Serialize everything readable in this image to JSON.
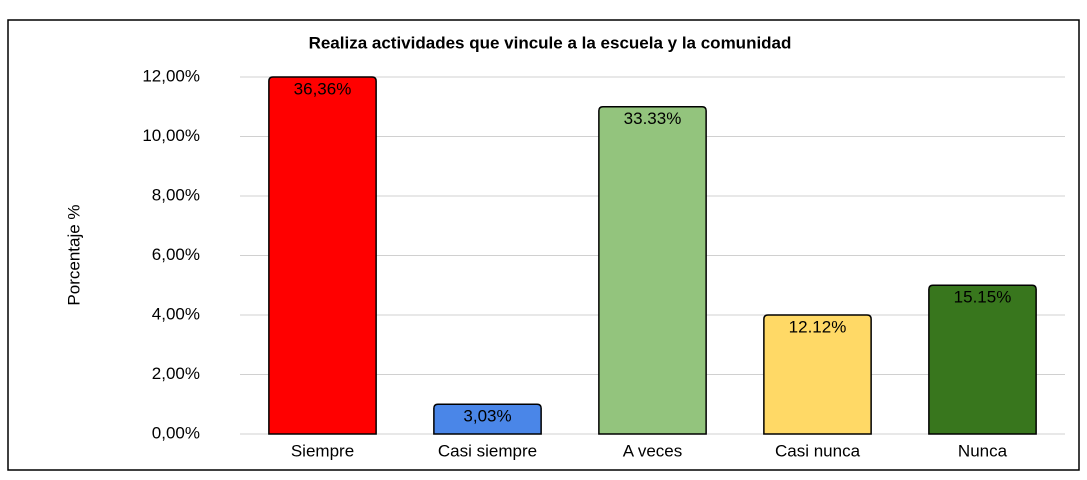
{
  "chart_data": {
    "type": "bar",
    "title": "Realiza actividades que vincule a la escuela y la comunidad",
    "y_label": "Porcentaje %",
    "categories": [
      "Siempre",
      "Casi siempre",
      "A veces",
      "Casi nunca",
      "Nunca"
    ],
    "values": [
      12,
      1,
      11,
      4,
      5
    ],
    "value_labels": [
      "36,36%",
      "3,03%",
      "33.33%",
      "12.12%",
      "15.15%"
    ],
    "colors": [
      "#ff0000",
      "#4a86e8",
      "#93c47d",
      "#ffd966",
      "#38761d"
    ],
    "value_label_colors": [
      "#ffffff",
      "#ffffff",
      "#000000",
      "#000000",
      "#ffffff"
    ],
    "ylim": [
      0,
      12
    ],
    "yticks": [
      {
        "value": 0,
        "label": "0,00%"
      },
      {
        "value": 2,
        "label": "2,00%"
      },
      {
        "value": 4,
        "label": "4,00%"
      },
      {
        "value": 6,
        "label": "6,00%"
      },
      {
        "value": 8,
        "label": "8,00%"
      },
      {
        "value": 10,
        "label": "10,00%"
      },
      {
        "value": 12,
        "label": "12,00%"
      }
    ],
    "grid": true
  }
}
